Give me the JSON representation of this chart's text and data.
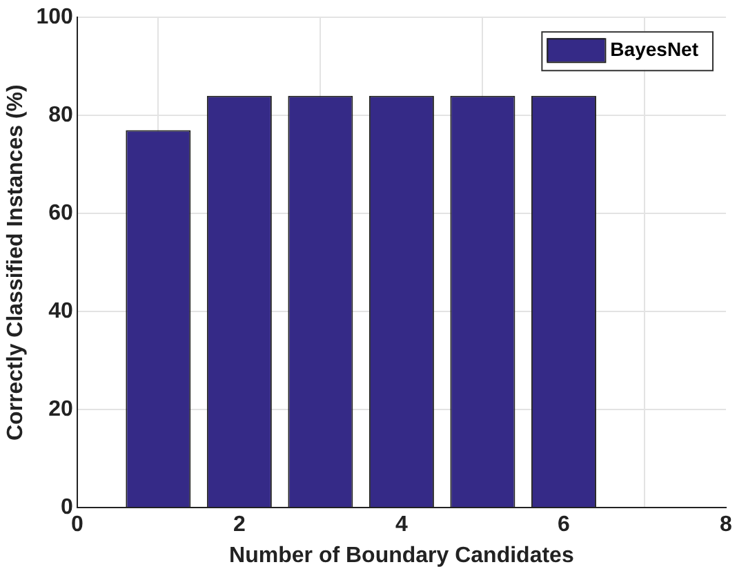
{
  "chart_data": {
    "type": "bar",
    "xlabel": "Number of Boundary Candidates",
    "ylabel": "Correctly Classified Instances (%)",
    "x": [
      1,
      2,
      3,
      4,
      5,
      6
    ],
    "series": [
      {
        "name": "BayesNet",
        "color": "#352a87",
        "values": [
          77,
          84,
          84,
          84,
          84,
          84
        ]
      }
    ],
    "xlim": [
      0,
      8
    ],
    "xticks": [
      0,
      2,
      4,
      6,
      8
    ],
    "ylim": [
      0,
      100
    ],
    "yticks": [
      0,
      20,
      40,
      60,
      80,
      100
    ],
    "grid": true,
    "legend": "top right"
  }
}
